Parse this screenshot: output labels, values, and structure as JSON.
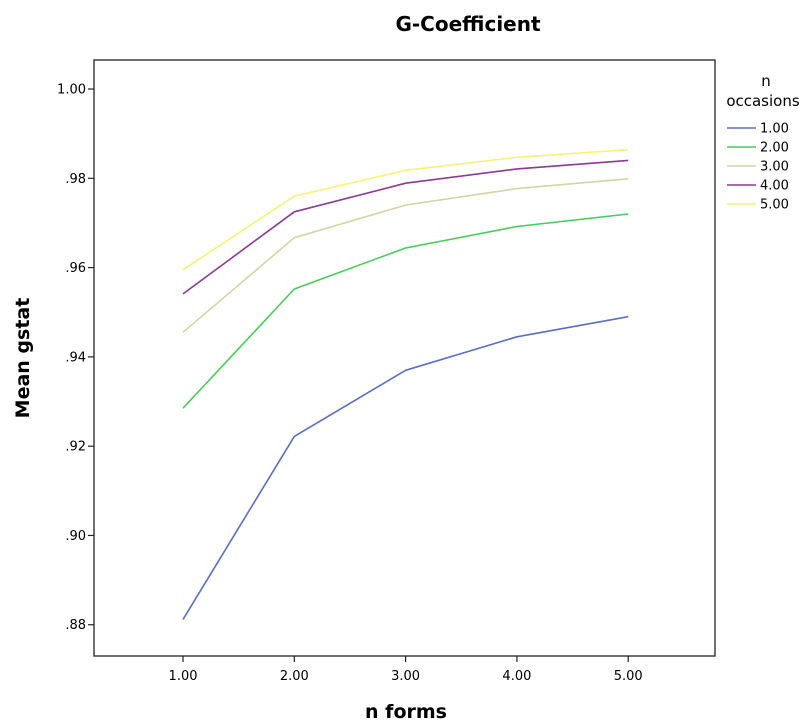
{
  "chart_data": {
    "type": "line",
    "title": "G-Coefficient",
    "xlabel": "n forms",
    "ylabel": "Mean gstat",
    "x": [
      1,
      2,
      3,
      4,
      5
    ],
    "x_tick_labels": [
      "1.00",
      "2.00",
      "3.00",
      "4.00",
      "5.00"
    ],
    "xlim": [
      0.2,
      5.78
    ],
    "ylim": [
      0.873,
      1.0065
    ],
    "y_ticks": [
      0.88,
      0.9,
      0.92,
      0.94,
      0.96,
      0.98,
      1.0
    ],
    "y_tick_labels": [
      ".88",
      ".90",
      ".92",
      ".94",
      ".96",
      ".98",
      "1.00"
    ],
    "grid": false,
    "legend_placement": "right",
    "legend_title_lines": [
      "n",
      "occasions"
    ],
    "series": [
      {
        "name": "1.00",
        "color": "#5b6fc0",
        "values": [
          0.8812,
          0.9222,
          0.937,
          0.9445,
          0.949
        ]
      },
      {
        "name": "2.00",
        "color": "#4cc95a",
        "values": [
          0.9285,
          0.9552,
          0.9644,
          0.9692,
          0.972
        ]
      },
      {
        "name": "3.00",
        "color": "#d6d3a6",
        "values": [
          0.9455,
          0.9667,
          0.974,
          0.9777,
          0.9799
        ]
      },
      {
        "name": "4.00",
        "color": "#8a3a94",
        "values": [
          0.9541,
          0.9725,
          0.9789,
          0.9821,
          0.984
        ]
      },
      {
        "name": "5.00",
        "color": "#f6f27a",
        "values": [
          0.9595,
          0.976,
          0.9818,
          0.9847,
          0.9864
        ]
      }
    ]
  }
}
